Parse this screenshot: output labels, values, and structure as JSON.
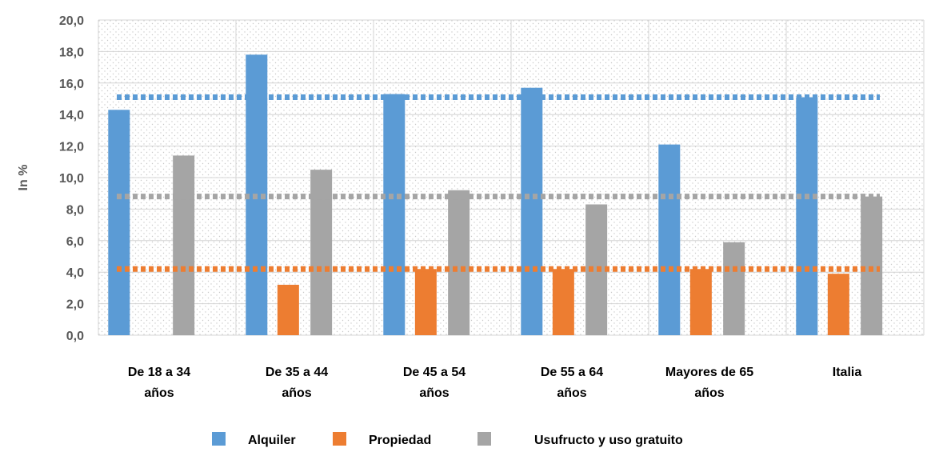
{
  "chart_data": {
    "type": "bar",
    "ylabel": "In %",
    "ylim": [
      0,
      20
    ],
    "ytick_step": 2,
    "ytick_labels": [
      "0,0",
      "2,0",
      "4,0",
      "6,0",
      "8,0",
      "10,0",
      "12,0",
      "14,0",
      "16,0",
      "18,0",
      "20,0"
    ],
    "grid": true,
    "legend_position": "bottom",
    "categories": [
      [
        "De 18 a 34",
        "años"
      ],
      [
        "De 35 a 44",
        "años"
      ],
      [
        "De 45 a 54",
        "años"
      ],
      [
        "De 55 a 64",
        "años"
      ],
      [
        "Mayores de 65",
        "años"
      ],
      [
        "Italia"
      ]
    ],
    "series": [
      {
        "name": "Alquiler",
        "color": "#5B9BD5",
        "values": [
          14.3,
          17.8,
          15.3,
          15.7,
          12.1,
          15.1
        ]
      },
      {
        "name": "Propiedad",
        "color": "#ED7D31",
        "values": [
          null,
          3.2,
          4.2,
          4.2,
          4.2,
          3.9
        ]
      },
      {
        "name": "Usufructo y uso gratuito",
        "color": "#A5A5A5",
        "values": [
          11.4,
          10.5,
          9.2,
          8.3,
          5.9,
          8.8
        ]
      }
    ],
    "reference_lines": [
      {
        "series": "Alquiler",
        "value": 15.1,
        "color": "#5B9BD5"
      },
      {
        "series": "Usufructo y uso gratuito",
        "value": 8.8,
        "color": "#A5A5A5"
      },
      {
        "series": "Propiedad",
        "value": 4.2,
        "color": "#ED7D31"
      }
    ]
  }
}
